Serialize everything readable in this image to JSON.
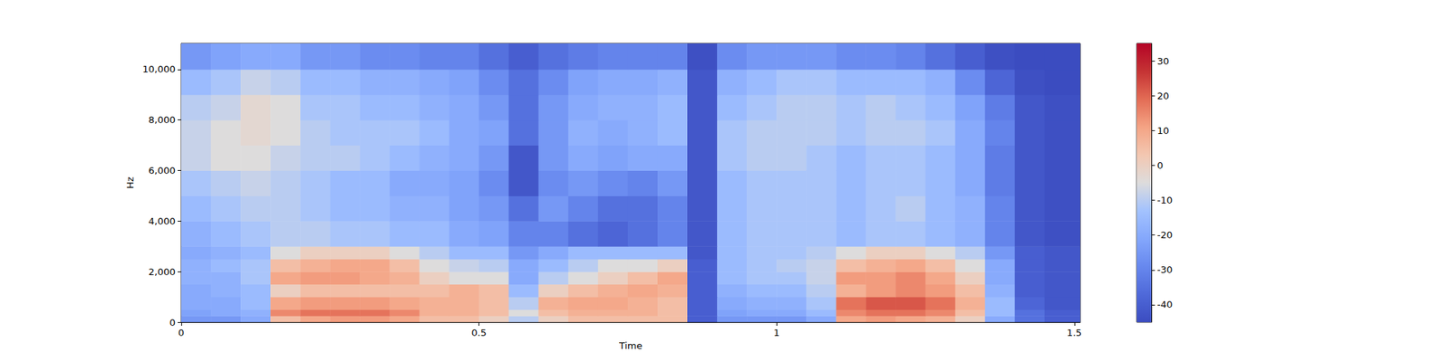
{
  "chart_data": {
    "type": "heatmap",
    "x_label": "Time",
    "y_label": "Hz",
    "xlim": [
      0,
      1.51
    ],
    "ylim": [
      0,
      11025
    ],
    "xticks": [
      0,
      0.5,
      1,
      1.5
    ],
    "yticks": [
      0,
      2000,
      4000,
      6000,
      8000,
      10000
    ],
    "x_edges": [
      0,
      0.05,
      0.1,
      0.15,
      0.2,
      0.25,
      0.3,
      0.35,
      0.4,
      0.45,
      0.5,
      0.55,
      0.6,
      0.65,
      0.7,
      0.75,
      0.8,
      0.85,
      0.9,
      0.95,
      1.0,
      1.05,
      1.1,
      1.15,
      1.2,
      1.25,
      1.3,
      1.35,
      1.4,
      1.45,
      1.51
    ],
    "y_edges": [
      0,
      250,
      500,
      1000,
      1500,
      2000,
      2500,
      3000,
      4000,
      5000,
      6000,
      7000,
      8000,
      9000,
      10000,
      11025
    ],
    "cells": [
      [
        -25,
        -25,
        -20,
        5,
        10,
        12,
        12,
        10,
        5,
        5,
        0,
        -10,
        0,
        5,
        5,
        5,
        5,
        -40,
        -25,
        -25,
        -25,
        -20,
        10,
        12,
        10,
        8,
        0,
        -20,
        -35,
        -40
      ],
      [
        -22,
        -20,
        -18,
        15,
        18,
        18,
        18,
        15,
        8,
        8,
        5,
        -5,
        5,
        8,
        8,
        8,
        5,
        -40,
        -22,
        -20,
        -20,
        -15,
        15,
        18,
        18,
        15,
        5,
        -15,
        -35,
        -40
      ],
      [
        -20,
        -20,
        -15,
        10,
        12,
        12,
        12,
        10,
        8,
        8,
        5,
        -10,
        8,
        10,
        10,
        8,
        5,
        -40,
        -20,
        -18,
        -18,
        -12,
        18,
        22,
        22,
        18,
        8,
        -15,
        -38,
        -42
      ],
      [
        -20,
        -18,
        -15,
        0,
        5,
        5,
        5,
        5,
        5,
        8,
        5,
        -15,
        0,
        5,
        8,
        10,
        8,
        -40,
        -18,
        -15,
        -15,
        -10,
        8,
        12,
        15,
        12,
        5,
        -18,
        -40,
        -42
      ],
      [
        -18,
        -18,
        -12,
        10,
        12,
        12,
        10,
        8,
        0,
        -5,
        -5,
        -20,
        -10,
        -5,
        0,
        5,
        10,
        -40,
        -15,
        -12,
        -12,
        -8,
        12,
        12,
        15,
        10,
        0,
        -20,
        -40,
        -42
      ],
      [
        -18,
        -15,
        -12,
        5,
        8,
        10,
        10,
        5,
        -5,
        -8,
        -10,
        -20,
        -15,
        -10,
        -5,
        -5,
        0,
        -40,
        -15,
        -12,
        -10,
        -8,
        5,
        8,
        10,
        5,
        -5,
        -20,
        -40,
        -42
      ],
      [
        -20,
        -18,
        -15,
        -5,
        0,
        0,
        0,
        -5,
        -10,
        -15,
        -15,
        -25,
        -20,
        -15,
        -15,
        -15,
        -15,
        -42,
        -15,
        -12,
        -12,
        -10,
        -5,
        0,
        0,
        -5,
        -10,
        -25,
        -40,
        -42
      ],
      [
        -18,
        -15,
        -12,
        -10,
        -10,
        -12,
        -12,
        -15,
        -15,
        -20,
        -22,
        -30,
        -30,
        -35,
        -38,
        -35,
        -30,
        -42,
        -15,
        -12,
        -12,
        -12,
        -15,
        -12,
        -12,
        -15,
        -18,
        -30,
        -42,
        -44
      ],
      [
        -15,
        -12,
        -10,
        -10,
        -12,
        -15,
        -15,
        -18,
        -18,
        -22,
        -25,
        -35,
        -25,
        -30,
        -35,
        -35,
        -30,
        -42,
        -15,
        -12,
        -12,
        -12,
        -15,
        -12,
        -10,
        -15,
        -18,
        -30,
        -42,
        -44
      ],
      [
        -12,
        -10,
        -8,
        -10,
        -12,
        -15,
        -15,
        -20,
        -20,
        -22,
        -28,
        -42,
        -28,
        -25,
        -28,
        -30,
        -25,
        -42,
        -15,
        -12,
        -12,
        -12,
        -15,
        -12,
        -12,
        -15,
        -20,
        -32,
        -42,
        -44
      ],
      [
        -8,
        -5,
        -5,
        -8,
        -10,
        -10,
        -12,
        -15,
        -18,
        -20,
        -25,
        -42,
        -25,
        -20,
        -22,
        -20,
        -20,
        -42,
        -12,
        -10,
        -10,
        -12,
        -15,
        -12,
        -12,
        -15,
        -20,
        -32,
        -42,
        -44
      ],
      [
        -8,
        -5,
        -3,
        -5,
        -10,
        -12,
        -12,
        -12,
        -15,
        -20,
        -22,
        -35,
        -25,
        -18,
        -20,
        -18,
        -15,
        -42,
        -12,
        -10,
        -10,
        -10,
        -12,
        -10,
        -10,
        -12,
        -20,
        -30,
        -42,
        -44
      ],
      [
        -10,
        -8,
        -3,
        -5,
        -12,
        -12,
        -15,
        -15,
        -18,
        -20,
        -25,
        -35,
        -25,
        -20,
        -18,
        -18,
        -15,
        -42,
        -15,
        -12,
        -10,
        -10,
        -12,
        -10,
        -12,
        -15,
        -22,
        -32,
        -42,
        -44
      ],
      [
        -15,
        -12,
        -8,
        -10,
        -15,
        -15,
        -18,
        -18,
        -20,
        -22,
        -28,
        -35,
        -28,
        -22,
        -20,
        -20,
        -18,
        -42,
        -18,
        -15,
        -12,
        -12,
        -15,
        -15,
        -15,
        -18,
        -28,
        -38,
        -44,
        -45
      ],
      [
        -25,
        -22,
        -20,
        -20,
        -25,
        -25,
        -28,
        -28,
        -30,
        -30,
        -35,
        -40,
        -35,
        -32,
        -30,
        -30,
        -30,
        -44,
        -28,
        -25,
        -25,
        -25,
        -28,
        -28,
        -30,
        -35,
        -40,
        -44,
        -45,
        -45
      ]
    ],
    "colorbar": {
      "range": [
        -45,
        35
      ],
      "ticks": [
        -40,
        -30,
        -20,
        -10,
        0,
        10,
        20,
        30
      ]
    }
  }
}
